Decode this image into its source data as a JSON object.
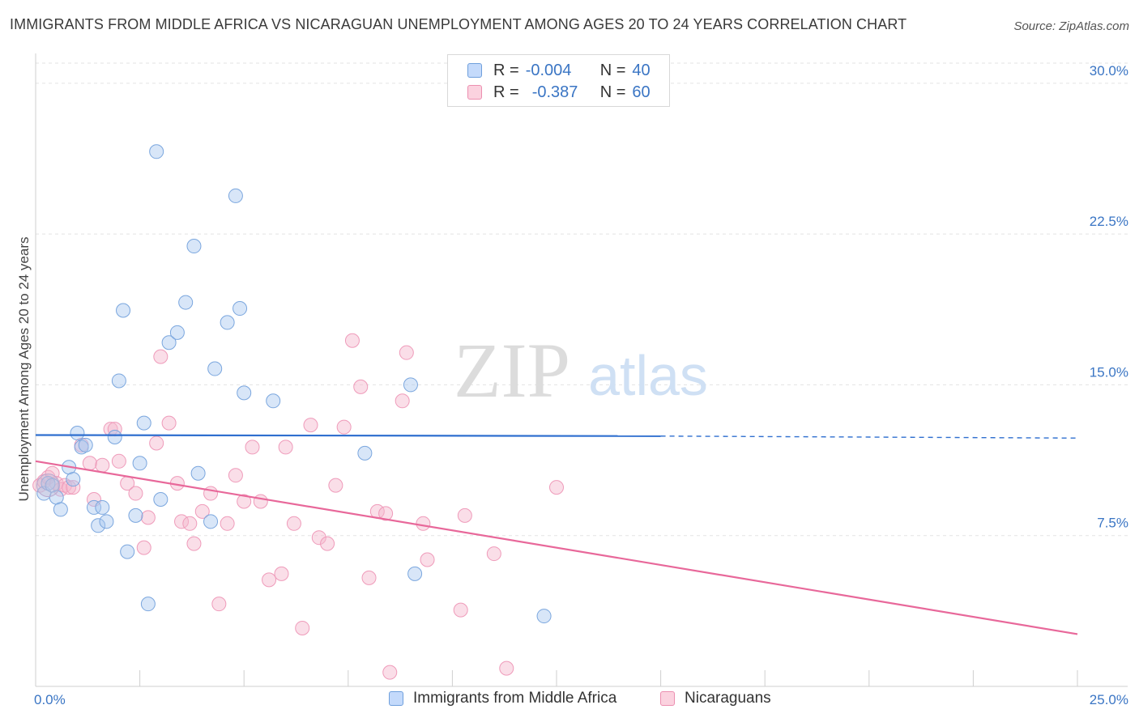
{
  "title": "IMMIGRANTS FROM MIDDLE AFRICA VS NICARAGUAN UNEMPLOYMENT AMONG AGES 20 TO 24 YEARS CORRELATION CHART",
  "source": "Source: ZipAtlas.com",
  "watermark": {
    "zip": "ZIP",
    "atlas": "atlas"
  },
  "stats": {
    "blue": {
      "r_label": "R =",
      "r_value": "-0.004",
      "n_label": "N =",
      "n_value": "40"
    },
    "pink": {
      "r_label": "R =",
      "r_value": "-0.387",
      "n_label": "N =",
      "n_value": "60"
    }
  },
  "colors": {
    "blue": "#a9c8f0",
    "blue_line": "#2f6fcf",
    "pink": "#f5b6cb",
    "pink_line": "#e8689a",
    "tick_text": "#3a75c4"
  },
  "chart_data": {
    "type": "scatter",
    "title": "IMMIGRANTS FROM MIDDLE AFRICA VS NICARAGUAN UNEMPLOYMENT AMONG AGES 20 TO 24 YEARS CORRELATION CHART",
    "xlabel": "",
    "ylabel": "Unemployment Among Ages 20 to 24 years",
    "xlim": [
      0,
      25
    ],
    "ylim": [
      0,
      31
    ],
    "x_tick_labels": [
      "0.0%",
      "25.0%"
    ],
    "y_ticks": [
      7.5,
      15.0,
      22.5,
      30.0
    ],
    "y_tick_labels": [
      "7.5%",
      "15.0%",
      "22.5%",
      "30.0%"
    ],
    "grid": true,
    "legend": "bottom-center",
    "series": [
      {
        "name": "Immigrants from Middle Africa",
        "color": "#a9c8f0",
        "points": [
          [
            0.2,
            9.6
          ],
          [
            0.3,
            10.1
          ],
          [
            0.4,
            10.0
          ],
          [
            0.5,
            9.4
          ],
          [
            0.6,
            8.8
          ],
          [
            0.8,
            10.9
          ],
          [
            0.9,
            10.3
          ],
          [
            1.0,
            12.6
          ],
          [
            1.1,
            11.9
          ],
          [
            1.2,
            12.0
          ],
          [
            1.4,
            8.9
          ],
          [
            1.5,
            8.0
          ],
          [
            1.6,
            8.9
          ],
          [
            1.7,
            8.2
          ],
          [
            1.9,
            12.4
          ],
          [
            2.0,
            15.2
          ],
          [
            2.1,
            18.7
          ],
          [
            2.2,
            6.7
          ],
          [
            2.4,
            8.5
          ],
          [
            2.5,
            11.1
          ],
          [
            2.6,
            13.1
          ],
          [
            2.7,
            4.1
          ],
          [
            2.9,
            26.6
          ],
          [
            3.0,
            9.3
          ],
          [
            3.2,
            17.1
          ],
          [
            3.4,
            17.6
          ],
          [
            3.6,
            19.1
          ],
          [
            3.8,
            21.9
          ],
          [
            3.9,
            10.6
          ],
          [
            4.2,
            8.2
          ],
          [
            4.3,
            15.8
          ],
          [
            4.6,
            18.1
          ],
          [
            4.8,
            24.4
          ],
          [
            4.9,
            18.8
          ],
          [
            5.0,
            14.6
          ],
          [
            5.7,
            14.2
          ],
          [
            7.9,
            11.6
          ],
          [
            9.0,
            15.0
          ],
          [
            9.1,
            5.6
          ],
          [
            12.2,
            3.5
          ]
        ],
        "trend": {
          "x": [
            0,
            15
          ],
          "y": [
            12.5,
            12.45
          ],
          "dashed_to": [
            25,
            12.35
          ]
        }
      },
      {
        "name": "Nicaraguans",
        "color": "#f5b6cb",
        "points": [
          [
            0.1,
            10.0
          ],
          [
            0.2,
            10.2
          ],
          [
            0.3,
            10.4
          ],
          [
            0.4,
            10.6
          ],
          [
            0.5,
            10.1
          ],
          [
            0.6,
            9.8
          ],
          [
            0.7,
            10.0
          ],
          [
            0.8,
            9.9
          ],
          [
            0.9,
            9.9
          ],
          [
            1.1,
            12.0
          ],
          [
            1.3,
            11.1
          ],
          [
            1.4,
            9.3
          ],
          [
            1.6,
            11.0
          ],
          [
            1.8,
            12.8
          ],
          [
            1.9,
            12.8
          ],
          [
            2.0,
            11.2
          ],
          [
            2.2,
            10.1
          ],
          [
            2.4,
            9.6
          ],
          [
            2.6,
            6.9
          ],
          [
            2.7,
            8.4
          ],
          [
            2.9,
            12.1
          ],
          [
            3.0,
            16.4
          ],
          [
            3.2,
            13.1
          ],
          [
            3.4,
            10.1
          ],
          [
            3.5,
            8.2
          ],
          [
            3.7,
            8.1
          ],
          [
            3.8,
            7.1
          ],
          [
            4.0,
            8.7
          ],
          [
            4.2,
            9.6
          ],
          [
            4.4,
            4.1
          ],
          [
            4.6,
            8.1
          ],
          [
            4.8,
            10.5
          ],
          [
            5.0,
            9.2
          ],
          [
            5.2,
            11.9
          ],
          [
            5.4,
            9.2
          ],
          [
            5.6,
            5.3
          ],
          [
            5.9,
            5.6
          ],
          [
            6.0,
            11.9
          ],
          [
            6.2,
            8.1
          ],
          [
            6.4,
            2.9
          ],
          [
            6.6,
            13.0
          ],
          [
            6.8,
            7.4
          ],
          [
            7.0,
            7.1
          ],
          [
            7.2,
            10.0
          ],
          [
            7.4,
            12.9
          ],
          [
            7.6,
            17.2
          ],
          [
            7.8,
            14.9
          ],
          [
            8.0,
            5.4
          ],
          [
            8.2,
            8.7
          ],
          [
            8.4,
            8.6
          ],
          [
            8.5,
            0.7
          ],
          [
            8.8,
            14.2
          ],
          [
            8.9,
            16.6
          ],
          [
            9.3,
            8.1
          ],
          [
            9.4,
            6.3
          ],
          [
            10.2,
            3.8
          ],
          [
            10.3,
            8.5
          ],
          [
            11.0,
            6.6
          ],
          [
            11.3,
            0.9
          ],
          [
            12.5,
            9.9
          ]
        ],
        "trend": {
          "x": [
            0,
            25
          ],
          "y": [
            11.2,
            2.6
          ]
        }
      }
    ]
  },
  "legend_items": [
    "Immigrants from Middle Africa",
    "Nicaraguans"
  ]
}
